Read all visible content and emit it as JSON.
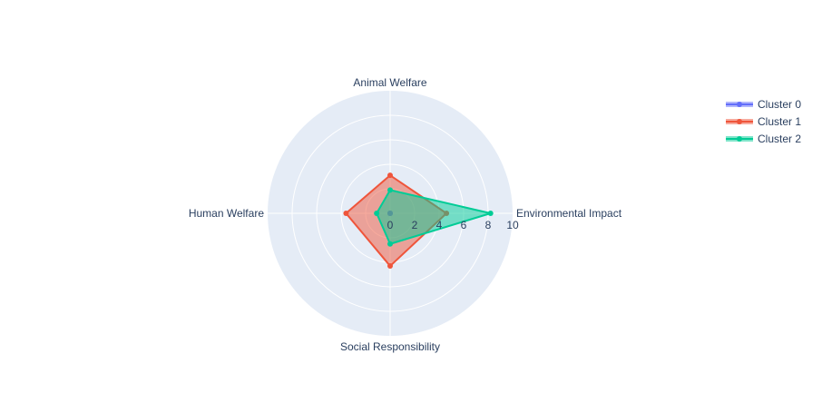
{
  "chart_data": {
    "type": "radar",
    "axes": [
      "Environmental Impact",
      "Animal Welfare",
      "Human Welfare",
      "Social Responsibility"
    ],
    "radial_range": [
      0,
      10
    ],
    "radial_ticks": [
      "0",
      "2",
      "4",
      "6",
      "8",
      "10"
    ],
    "grid": true,
    "legend_position": "top-right",
    "series": [
      {
        "name": "Cluster 0",
        "color": "#636efa",
        "values": [
          0,
          0,
          0,
          0
        ]
      },
      {
        "name": "Cluster 1",
        "color": "#ef553b",
        "values": [
          4.6,
          3.1,
          3.6,
          4.3
        ]
      },
      {
        "name": "Cluster 2",
        "color": "#00cc96",
        "values": [
          8.2,
          1.9,
          1.1,
          2.5
        ]
      }
    ]
  }
}
